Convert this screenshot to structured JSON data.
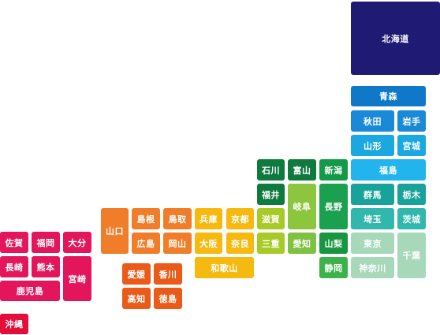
{
  "prefectures": {
    "hokkaido": {
      "label": "北海道",
      "color": "#1f1a73"
    },
    "aomori": {
      "label": "青森",
      "color": "#1078c8"
    },
    "akita": {
      "label": "秋田",
      "color": "#1a8ad6"
    },
    "iwate": {
      "label": "岩手",
      "color": "#1a8ad6"
    },
    "yamagata": {
      "label": "山形",
      "color": "#1ba7e0"
    },
    "miyagi": {
      "label": "宮城",
      "color": "#1ba7e0"
    },
    "fukushima": {
      "label": "福島",
      "color": "#22b4ec"
    },
    "ishikawa": {
      "label": "石川",
      "color": "#0f7a3d"
    },
    "toyama": {
      "label": "富山",
      "color": "#0f7a3d"
    },
    "niigata": {
      "label": "新潟",
      "color": "#139a48"
    },
    "fukui": {
      "label": "福井",
      "color": "#0f7a3d"
    },
    "gifu": {
      "label": "岐阜",
      "color": "#8cc63f"
    },
    "nagano": {
      "label": "長野",
      "color": "#1aa04e"
    },
    "gunma": {
      "label": "群馬",
      "color": "#17a39a"
    },
    "tochigi": {
      "label": "栃木",
      "color": "#17a39a"
    },
    "saitama": {
      "label": "埼玉",
      "color": "#31b7ab"
    },
    "ibaraki": {
      "label": "茨城",
      "color": "#31b7ab"
    },
    "yamanashi": {
      "label": "山梨",
      "color": "#17963f"
    },
    "shizuoka": {
      "label": "静岡",
      "color": "#3bb24a"
    },
    "aichi": {
      "label": "愛知",
      "color": "#7fc241"
    },
    "tokyo": {
      "label": "東京",
      "color": "#a6d8b9"
    },
    "kanagawa": {
      "label": "神奈川",
      "color": "#a6d8b9"
    },
    "chiba": {
      "label": "千葉",
      "color": "#a6d8b9"
    },
    "shiga": {
      "label": "滋賀",
      "color": "#a8ca27"
    },
    "mie": {
      "label": "三重",
      "color": "#a8ca27"
    },
    "kyoto": {
      "label": "京都",
      "color": "#f5b90f"
    },
    "osaka": {
      "label": "大阪",
      "color": "#f5b90f"
    },
    "nara": {
      "label": "奈良",
      "color": "#f5b90f"
    },
    "hyogo": {
      "label": "兵庫",
      "color": "#f5b90f"
    },
    "wakayama": {
      "label": "和歌山",
      "color": "#f5b90f"
    },
    "shimane": {
      "label": "島根",
      "color": "#f07d2a"
    },
    "tottori": {
      "label": "鳥取",
      "color": "#f07d2a"
    },
    "hiroshima": {
      "label": "広島",
      "color": "#f07d2a"
    },
    "okayama": {
      "label": "岡山",
      "color": "#f07d2a"
    },
    "yamaguchi": {
      "label": "山口",
      "color": "#f07d2a"
    },
    "ehime": {
      "label": "愛媛",
      "color": "#ea5a18"
    },
    "kagawa": {
      "label": "香川",
      "color": "#ea5a18"
    },
    "kochi": {
      "label": "高知",
      "color": "#ea5a18"
    },
    "tokushima": {
      "label": "徳島",
      "color": "#ea5a18"
    },
    "saga": {
      "label": "佐賀",
      "color": "#e3165c"
    },
    "fukuoka": {
      "label": "福岡",
      "color": "#e3165c"
    },
    "oita": {
      "label": "大分",
      "color": "#e3165c"
    },
    "nagasaki": {
      "label": "長崎",
      "color": "#e3165c"
    },
    "kumamoto": {
      "label": "熊本",
      "color": "#e3165c"
    },
    "miyazaki": {
      "label": "宮崎",
      "color": "#e3165c"
    },
    "kagoshima": {
      "label": "鹿児島",
      "color": "#e3165c"
    },
    "okinawa": {
      "label": "沖縄",
      "color": "#e30e3a"
    }
  }
}
